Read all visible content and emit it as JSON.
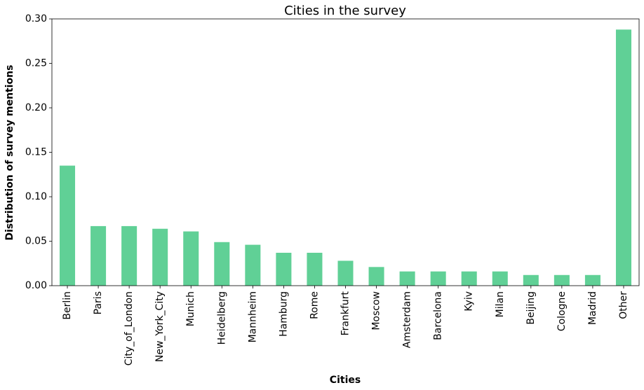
{
  "chart_data": {
    "type": "bar",
    "title": "Cities in the survey",
    "xlabel": "Cities",
    "ylabel": "Distribution of survey mentions",
    "categories": [
      "Berlin",
      "Paris",
      "City_of_London",
      "New_York_City",
      "Munich",
      "Heidelberg",
      "Mannheim",
      "Hamburg",
      "Rome",
      "Frankfurt",
      "Moscow",
      "Amsterdam",
      "Barcelona",
      "Kyiv",
      "Milan",
      "Beijing",
      "Cologne",
      "Madrid",
      "Other"
    ],
    "values": [
      0.135,
      0.067,
      0.067,
      0.064,
      0.061,
      0.049,
      0.046,
      0.037,
      0.037,
      0.028,
      0.021,
      0.016,
      0.016,
      0.016,
      0.016,
      0.012,
      0.012,
      0.012,
      0.288
    ],
    "ylim": [
      0,
      0.3
    ],
    "yticks": [
      "0.00",
      "0.05",
      "0.10",
      "0.15",
      "0.20",
      "0.25",
      "0.30"
    ],
    "grid": false,
    "colors": {
      "bar": "#60d096",
      "axis": "#000000"
    }
  }
}
